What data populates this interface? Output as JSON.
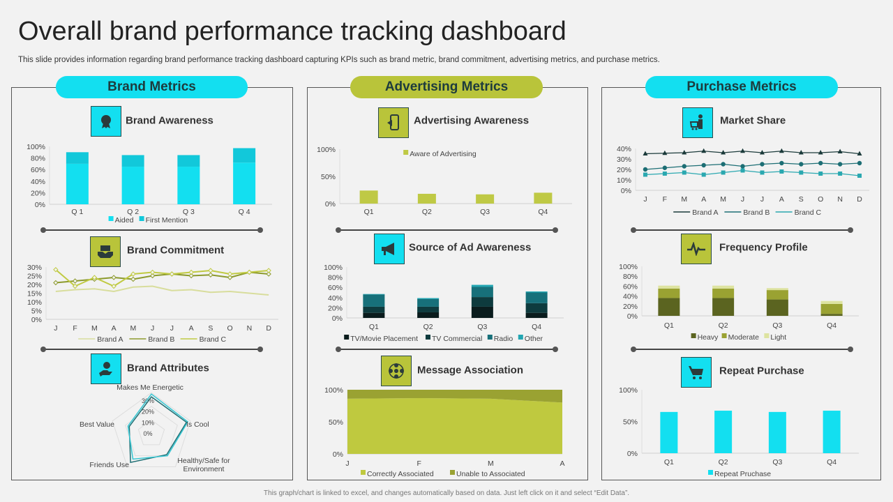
{
  "title": "Overall brand performance tracking dashboard",
  "subtitle": "This slide provides information regarding brand performance tracking dashboard capturing KPIs such as brand metric, brand commitment, advertising metrics, and purchase metrics.",
  "footer": "This graph/chart is linked to excel, and changes automatically based on data. Just left click on it and select “Edit Data”.",
  "colors": {
    "cyan": "#13dff0",
    "olive": "#b9c43a",
    "dark": "#1d3b3d"
  },
  "sections": [
    {
      "label": "Brand Metrics",
      "color": "#13dff0",
      "widgets": [
        {
          "title": "Brand Awareness",
          "icon": "award-badge-icon",
          "icon_bg": "#13dff0"
        },
        {
          "title": "Brand Commitment",
          "icon": "handshake-icon",
          "icon_bg": "#b9c43a"
        },
        {
          "title": "Brand Attributes",
          "icon": "person-in-hand-icon",
          "icon_bg": "#13dff0"
        }
      ]
    },
    {
      "label": "Advertising Metrics",
      "color": "#b9c43a",
      "widgets": [
        {
          "title": "Advertising Awareness",
          "icon": "mobile-megaphone-icon",
          "icon_bg": "#b9c43a"
        },
        {
          "title": "Source of Ad Awareness",
          "icon": "megaphone-icon",
          "icon_bg": "#13dff0"
        },
        {
          "title": "Message Association",
          "icon": "people-network-icon",
          "icon_bg": "#b9c43a"
        }
      ]
    },
    {
      "label": "Purchase Metrics",
      "color": "#13dff0",
      "widgets": [
        {
          "title": "Market Share",
          "icon": "shopper-cart-icon",
          "icon_bg": "#13dff0"
        },
        {
          "title": "Frequency Profile",
          "icon": "pulse-icon",
          "icon_bg": "#b9c43a"
        },
        {
          "title": "Repeat Purchase",
          "icon": "shopping-cart-icon",
          "icon_bg": "#13dff0"
        }
      ]
    }
  ],
  "chart_data": [
    {
      "id": "brand_awareness",
      "type": "stacked-bar",
      "categories": [
        "Q 1",
        "Q 2",
        "Q 3",
        "Q 4"
      ],
      "ylim": [
        0,
        100
      ],
      "yticks": [
        "0%",
        "20%",
        "40%",
        "60%",
        "80%",
        "100%"
      ],
      "series": [
        {
          "name": "Aided",
          "values": [
            70,
            65,
            65,
            72
          ],
          "color": "#13dff0"
        },
        {
          "name": "First Mention",
          "values": [
            20,
            20,
            20,
            25
          ],
          "color": "#12c8da"
        }
      ]
    },
    {
      "id": "brand_commitment",
      "type": "line",
      "categories": [
        "J",
        "F",
        "M",
        "A",
        "M",
        "J",
        "J",
        "A",
        "S",
        "O",
        "N",
        "D"
      ],
      "ylim": [
        0,
        30
      ],
      "yticks": [
        "0%",
        "5%",
        "10%",
        "15%",
        "20%",
        "25%",
        "30%"
      ],
      "series": [
        {
          "name": "Brand A",
          "values": [
            16,
            17,
            17.5,
            16,
            18.5,
            19,
            16.5,
            17,
            15.5,
            16,
            15,
            14
          ],
          "color": "#d8dd9c",
          "marker": "none"
        },
        {
          "name": "Brand B",
          "values": [
            21,
            22,
            23,
            24,
            23,
            25,
            26,
            25,
            25.5,
            24,
            27,
            26
          ],
          "color": "#8c9a2c",
          "marker": "diamond"
        },
        {
          "name": "Brand C",
          "values": [
            28.5,
            19,
            24,
            19,
            26,
            27,
            26,
            27,
            28,
            26,
            27,
            28
          ],
          "color": "#c0ca42",
          "marker": "diamond"
        }
      ]
    },
    {
      "id": "brand_attributes",
      "type": "radar",
      "axes": [
        "Makes Me Energetic",
        "Is Cool",
        "Healthy/Safe for Environment",
        "Friends Use",
        "Best Value"
      ],
      "ylim": [
        0,
        30
      ],
      "yticks": [
        "0%",
        "10%",
        "20%",
        "30%"
      ],
      "series": [
        {
          "values": [
            27,
            27,
            19,
            26,
            17
          ],
          "color": "#1f6f74"
        },
        {
          "values": [
            29,
            28,
            20,
            23,
            18
          ],
          "color": "#34c6d2"
        }
      ]
    },
    {
      "id": "advertising_awareness",
      "type": "bar",
      "categories": [
        "Q1",
        "Q2",
        "Q3",
        "Q4"
      ],
      "ylim": [
        0,
        100
      ],
      "yticks": [
        "0%",
        "50%",
        "100%"
      ],
      "legend": "top",
      "series": [
        {
          "name": "Aware of  Advertising",
          "values": [
            24,
            18,
            17,
            20
          ],
          "color": "#bfc945"
        }
      ]
    },
    {
      "id": "source_of_ad_awareness",
      "type": "stacked-bar",
      "categories": [
        "Q1",
        "Q2",
        "Q3",
        "Q4"
      ],
      "ylim": [
        0,
        100
      ],
      "yticks": [
        "0%",
        "20%",
        "40%",
        "60%",
        "80%",
        "100%"
      ],
      "series": [
        {
          "name": "TV/Movie Placement",
          "values": [
            10,
            11,
            22,
            10
          ],
          "color": "#0a1c1d"
        },
        {
          "name": "TV Commercial",
          "values": [
            12,
            11,
            19,
            19
          ],
          "color": "#0e3b3e"
        },
        {
          "name": "Radio",
          "values": [
            24,
            15,
            20,
            21
          ],
          "color": "#17707a"
        },
        {
          "name": "Other",
          "values": [
            1,
            2,
            4,
            2
          ],
          "color": "#22a6b2"
        }
      ]
    },
    {
      "id": "message_association",
      "type": "area",
      "categories": [
        "J",
        "F",
        "M",
        "A"
      ],
      "ylim": [
        0,
        100
      ],
      "yticks": [
        "0%",
        "50%",
        "100%"
      ],
      "series": [
        {
          "name": "Correctly Associated",
          "values": [
            86,
            87,
            86,
            80
          ],
          "color": "#bfc93f"
        },
        {
          "name": "Unable to Associated",
          "values": [
            14,
            13,
            14,
            20
          ],
          "color": "#9aa232"
        }
      ]
    },
    {
      "id": "market_share",
      "type": "line",
      "categories": [
        "J",
        "F",
        "M",
        "A",
        "M",
        "J",
        "J",
        "A",
        "S",
        "O",
        "N",
        "D"
      ],
      "ylim": [
        0,
        40
      ],
      "yticks": [
        "0%",
        "10%",
        "20%",
        "30%",
        "40%"
      ],
      "series": [
        {
          "name": "Brand A",
          "values": [
            35,
            35.5,
            36,
            37.5,
            36,
            37.5,
            36,
            37.5,
            36,
            36,
            37,
            35
          ],
          "color": "#1b3a3a",
          "marker": "triangle"
        },
        {
          "name": "Brand B",
          "values": [
            20,
            21.5,
            23,
            24,
            25,
            23,
            25,
            26,
            25,
            26,
            25,
            26
          ],
          "color": "#1c6e74",
          "marker": "circle"
        },
        {
          "name": "Brand C",
          "values": [
            15,
            16,
            17,
            15,
            17,
            19,
            17,
            18,
            17,
            16,
            16,
            14
          ],
          "color": "#2aa8b0",
          "marker": "square"
        }
      ]
    },
    {
      "id": "frequency_profile",
      "type": "stacked-bar",
      "categories": [
        "Q1",
        "Q2",
        "Q3",
        "Q4"
      ],
      "ylim": [
        0,
        100
      ],
      "yticks": [
        "0%",
        "20%",
        "40%",
        "60%",
        "80%",
        "100%"
      ],
      "series": [
        {
          "name": "Heavy",
          "values": [
            36,
            36,
            33,
            4
          ],
          "color": "#5b6420"
        },
        {
          "name": "Moderate",
          "values": [
            19,
            19,
            19,
            20
          ],
          "color": "#9aa232"
        },
        {
          "name": "Light",
          "values": [
            6,
            6,
            4,
            6
          ],
          "color": "#dde3a0"
        }
      ]
    },
    {
      "id": "repeat_purchase",
      "type": "bar",
      "categories": [
        "Q1",
        "Q2",
        "Q3",
        "Q4"
      ],
      "ylim": [
        0,
        100
      ],
      "yticks": [
        "0%",
        "50%",
        "100%"
      ],
      "series": [
        {
          "name": "Repeat Pruchase",
          "values": [
            65,
            67,
            65,
            67
          ],
          "color": "#13dff0"
        }
      ]
    }
  ]
}
